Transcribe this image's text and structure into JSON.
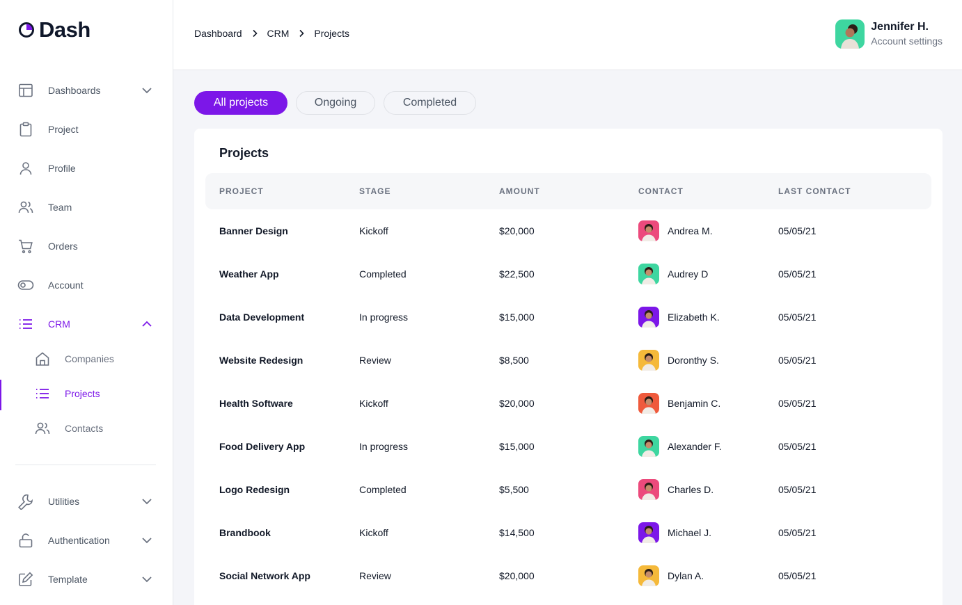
{
  "app": {
    "name": "Dash",
    "accent": "#7c17e8"
  },
  "sidebar": {
    "items": [
      {
        "label": "Dashboards",
        "icon": "layout-icon",
        "has_chevron": true
      },
      {
        "label": "Project",
        "icon": "clipboard-icon"
      },
      {
        "label": "Profile",
        "icon": "user-icon"
      },
      {
        "label": "Team",
        "icon": "users-icon"
      },
      {
        "label": "Orders",
        "icon": "cart-icon"
      },
      {
        "label": "Account",
        "icon": "toggle-icon"
      },
      {
        "label": "CRM",
        "icon": "list-icon",
        "has_chevron": true,
        "expanded": true
      }
    ],
    "crm_sub": [
      {
        "label": "Companies",
        "icon": "home-icon"
      },
      {
        "label": "Projects",
        "icon": "list-icon",
        "active": true
      },
      {
        "label": "Contacts",
        "icon": "users-icon"
      }
    ],
    "bottom_items": [
      {
        "label": "Utilities",
        "icon": "wrench-icon"
      },
      {
        "label": "Authentication",
        "icon": "lock-icon"
      },
      {
        "label": "Template",
        "icon": "edit-icon"
      }
    ]
  },
  "header": {
    "breadcrumb": [
      "Dashboard",
      "CRM",
      "Projects"
    ],
    "user": {
      "name": "Jennifer H.",
      "subtitle": "Account settings"
    }
  },
  "filters": {
    "all": "All projects",
    "ongoing": "Ongoing",
    "completed": "Completed"
  },
  "table": {
    "title": "Projects",
    "columns": [
      "PROJECT",
      "STAGE",
      "AMOUNT",
      "CONTACT",
      "LAST CONTACT"
    ],
    "rows": [
      {
        "project": "Banner Design",
        "stage": "Kickoff",
        "amount": "$20,000",
        "contact": "Andrea M.",
        "avatar_bg": "#ec4a7c",
        "last": "05/05/21"
      },
      {
        "project": "Weather App",
        "stage": "Completed",
        "amount": "$22,500",
        "contact": "Audrey D",
        "avatar_bg": "#3ed6a0",
        "last": "05/05/21"
      },
      {
        "project": "Data Development",
        "stage": "In progress",
        "amount": "$15,000",
        "contact": "Elizabeth K.",
        "avatar_bg": "#7c17e8",
        "last": "05/05/21"
      },
      {
        "project": "Website Redesign",
        "stage": "Review",
        "amount": "$8,500",
        "contact": "Doronthy S.",
        "avatar_bg": "#f5b93a",
        "last": "05/05/21"
      },
      {
        "project": "Health Software",
        "stage": "Kickoff",
        "amount": "$20,000",
        "contact": "Benjamin C.",
        "avatar_bg": "#ef5a3c",
        "last": "05/05/21"
      },
      {
        "project": "Food Delivery App",
        "stage": "In progress",
        "amount": "$15,000",
        "contact": "Alexander F.",
        "avatar_bg": "#3ed6a0",
        "last": "05/05/21"
      },
      {
        "project": "Logo Redesign",
        "stage": "Completed",
        "amount": "$5,500",
        "contact": "Charles D.",
        "avatar_bg": "#ec4a7c",
        "last": "05/05/21"
      },
      {
        "project": "Brandbook",
        "stage": "Kickoff",
        "amount": "$14,500",
        "contact": "Michael J.",
        "avatar_bg": "#7c17e8",
        "last": "05/05/21"
      },
      {
        "project": "Social Network App",
        "stage": "Review",
        "amount": "$20,000",
        "contact": "Dylan A.",
        "avatar_bg": "#f5b93a",
        "last": "05/05/21"
      }
    ]
  }
}
